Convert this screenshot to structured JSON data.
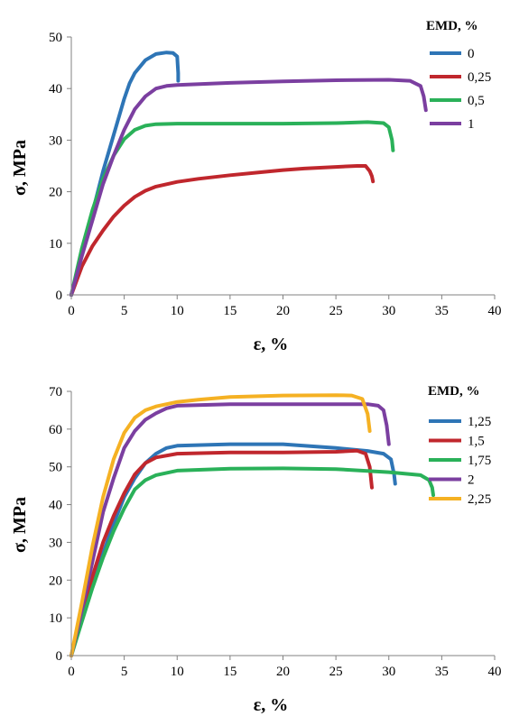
{
  "chart_data": [
    {
      "type": "line",
      "title": "",
      "xlabel": "ε, %",
      "ylabel": "σ, MPa",
      "xlim": [
        0,
        40
      ],
      "ylim": [
        0,
        50
      ],
      "xticks": [
        0,
        5,
        10,
        15,
        20,
        25,
        30,
        35,
        40
      ],
      "yticks": [
        0,
        10,
        20,
        30,
        40,
        50
      ],
      "grid": false,
      "legend_title": "EMD, %",
      "legend_position": "top-right",
      "series": [
        {
          "name": "0",
          "color": "#2e75b6",
          "x": [
            0,
            1,
            2,
            3,
            4,
            5,
            5.5,
            6,
            7,
            8,
            9,
            9.6,
            10,
            10.1,
            10.1
          ],
          "y": [
            0,
            8,
            16,
            24,
            31,
            38,
            41,
            43,
            45.5,
            46.7,
            47,
            46.9,
            46.2,
            43,
            41.5
          ]
        },
        {
          "name": "0,25",
          "color": "#c0272d",
          "x": [
            0,
            1,
            2,
            3,
            4,
            5,
            6,
            7,
            8,
            10,
            12,
            15,
            18,
            20,
            22,
            25,
            27,
            27.8,
            28.2,
            28.4,
            28.5
          ],
          "y": [
            0,
            5.5,
            9.5,
            12.5,
            15.2,
            17.3,
            19,
            20.2,
            21,
            21.9,
            22.5,
            23.2,
            23.8,
            24.2,
            24.5,
            24.8,
            25,
            25,
            24,
            23,
            22
          ]
        },
        {
          "name": "0,5",
          "color": "#2ab159",
          "x": [
            0,
            1,
            2,
            3,
            4,
            5,
            6,
            7,
            8,
            10,
            15,
            20,
            25,
            28,
            29.5,
            30,
            30.3,
            30.4
          ],
          "y": [
            0,
            9,
            16.5,
            22.5,
            27,
            30.2,
            32,
            32.8,
            33.1,
            33.2,
            33.2,
            33.2,
            33.3,
            33.5,
            33.3,
            32.5,
            30,
            28
          ]
        },
        {
          "name": "1",
          "color": "#7b3fa0",
          "x": [
            0,
            1,
            2,
            3,
            4,
            5,
            6,
            7,
            8,
            9,
            10,
            15,
            20,
            25,
            30,
            32,
            33,
            33.3,
            33.5
          ],
          "y": [
            0,
            7.5,
            14.5,
            21.5,
            27,
            32,
            36,
            38.5,
            40,
            40.5,
            40.7,
            41.1,
            41.4,
            41.6,
            41.7,
            41.5,
            40.5,
            38.5,
            35.8
          ]
        }
      ]
    },
    {
      "type": "line",
      "title": "",
      "xlabel": "ε, %",
      "ylabel": "σ, MPa",
      "xlim": [
        0,
        40
      ],
      "ylim": [
        0,
        70
      ],
      "xticks": [
        0,
        5,
        10,
        15,
        20,
        25,
        30,
        35,
        40
      ],
      "yticks": [
        0,
        10,
        20,
        30,
        40,
        50,
        60,
        70
      ],
      "grid": false,
      "legend_title": "EMD, %",
      "legend_position": "top-right",
      "series": [
        {
          "name": "1,25",
          "color": "#2e75b6",
          "x": [
            0,
            1,
            2,
            3,
            4,
            5,
            6,
            7,
            8,
            9,
            10,
            15,
            20,
            25,
            28,
            29.5,
            30.2,
            30.5,
            30.6
          ],
          "y": [
            0,
            10,
            19,
            27,
            35,
            42,
            47,
            51,
            53.5,
            55,
            55.6,
            56,
            56,
            55,
            54.2,
            53.5,
            52,
            48,
            45.5
          ]
        },
        {
          "name": "1,5",
          "color": "#c0272d",
          "x": [
            0,
            1,
            2,
            3,
            4,
            5,
            6,
            7,
            8,
            10,
            15,
            20,
            25,
            27,
            27.8,
            28.2,
            28.4
          ],
          "y": [
            0,
            11,
            21,
            30,
            37,
            43,
            48,
            51,
            52.5,
            53.5,
            53.8,
            53.8,
            54,
            54.3,
            53.5,
            50,
            44.5
          ]
        },
        {
          "name": "1,75",
          "color": "#2ab159",
          "x": [
            0,
            1,
            2,
            3,
            4,
            5,
            6,
            7,
            8,
            10,
            15,
            20,
            25,
            30,
            33,
            33.8,
            34.1,
            34.2
          ],
          "y": [
            0,
            9,
            18,
            26,
            33,
            39,
            44,
            46.5,
            47.8,
            49,
            49.5,
            49.6,
            49.4,
            48.6,
            47.8,
            46.5,
            44.5,
            42.5
          ]
        },
        {
          "name": "2",
          "color": "#7b3fa0",
          "x": [
            0,
            1,
            2,
            3,
            4,
            5,
            6,
            7,
            8,
            9,
            10,
            15,
            20,
            25,
            28,
            29,
            29.5,
            29.8,
            30
          ],
          "y": [
            0,
            12,
            25,
            38,
            47,
            55,
            59.5,
            62.5,
            64.2,
            65.5,
            66.2,
            66.6,
            66.6,
            66.6,
            66.6,
            66.2,
            65,
            61,
            56
          ]
        },
        {
          "name": "2,25",
          "color": "#f5b123",
          "x": [
            0,
            1,
            2,
            3,
            4,
            5,
            6,
            7,
            8,
            10,
            12,
            15,
            20,
            25,
            26.5,
            27.5,
            28,
            28.2
          ],
          "y": [
            0,
            14,
            29,
            42,
            52,
            59,
            63,
            65,
            66,
            67.2,
            67.8,
            68.5,
            68.9,
            69,
            68.9,
            68,
            64,
            59.5
          ]
        }
      ]
    }
  ]
}
